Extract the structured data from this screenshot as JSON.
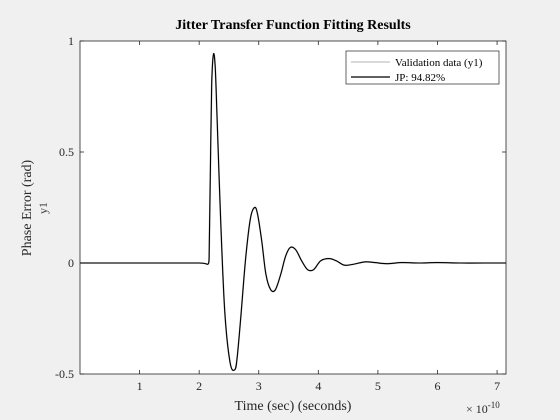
{
  "chart_data": {
    "type": "line",
    "title": "Jitter Transfer Function Fitting Results",
    "xlabel": "Time (sec) (seconds)",
    "ylabel": "Phase Error (rad)",
    "ylabel_secondary": "y1",
    "x_exponent_label": "× 10",
    "x_exponent_power": "-10",
    "xlim": [
      0,
      7.15
    ],
    "ylim": [
      -0.5,
      1
    ],
    "x_ticks": [
      1,
      2,
      3,
      4,
      5,
      6,
      7
    ],
    "x_tick_labels": [
      "1",
      "2",
      "3",
      "4",
      "5",
      "6",
      "7"
    ],
    "y_ticks": [
      -0.5,
      0,
      0.5,
      1
    ],
    "y_tick_labels": [
      "-0.5",
      "0",
      "0.5",
      "1"
    ],
    "grid": false,
    "legend_position": "top-right",
    "x": [
      0,
      2.0,
      2.16,
      2.17,
      2.19,
      2.21,
      2.24,
      2.27,
      2.3,
      2.36,
      2.43,
      2.52,
      2.6,
      2.64,
      2.7,
      2.78,
      2.86,
      2.93,
      2.98,
      3.05,
      3.12,
      3.2,
      3.28,
      3.37,
      3.45,
      3.53,
      3.62,
      3.72,
      3.82,
      3.92,
      4.04,
      4.18,
      4.3,
      4.44,
      4.6,
      4.78,
      4.95,
      5.15,
      5.4,
      5.7,
      6.0,
      6.4,
      6.8,
      7.15
    ],
    "series": [
      {
        "name": "Validation data (y1)",
        "color": "#b3b3b3",
        "values": [
          0,
          0,
          0,
          0.08,
          0.45,
          0.8,
          0.94,
          0.88,
          0.66,
          0.2,
          -0.22,
          -0.45,
          -0.48,
          -0.42,
          -0.24,
          0.02,
          0.2,
          0.25,
          0.22,
          0.1,
          -0.05,
          -0.12,
          -0.12,
          -0.05,
          0.03,
          0.07,
          0.06,
          0.01,
          -0.03,
          -0.03,
          0.01,
          0.02,
          0.01,
          -0.01,
          -0.005,
          0.005,
          0.002,
          -0.003,
          0.002,
          0.0,
          0.002,
          0.0,
          0.0,
          0.0
        ]
      },
      {
        "name": "JP: 94.82%",
        "color": "#000000",
        "values": [
          0,
          0,
          0,
          0.08,
          0.45,
          0.8,
          0.94,
          0.88,
          0.66,
          0.2,
          -0.22,
          -0.45,
          -0.48,
          -0.42,
          -0.24,
          0.02,
          0.2,
          0.25,
          0.22,
          0.1,
          -0.05,
          -0.12,
          -0.12,
          -0.05,
          0.03,
          0.07,
          0.06,
          0.01,
          -0.03,
          -0.03,
          0.01,
          0.02,
          0.01,
          -0.01,
          -0.005,
          0.005,
          0.002,
          -0.003,
          0.002,
          0.0,
          0.002,
          0.0,
          0.0,
          0.0
        ]
      }
    ]
  }
}
